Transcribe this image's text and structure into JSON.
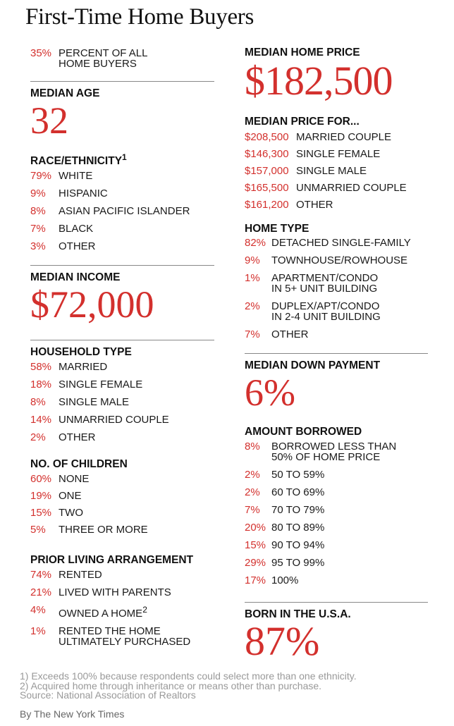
{
  "title": "First-Time Home Buyers",
  "percent_all": {
    "pct": "35%",
    "label_line1": "PERCENT OF ALL",
    "label_line2": "HOME BUYERS"
  },
  "median_age": {
    "header": "MEDIAN AGE",
    "value": "32"
  },
  "race": {
    "header": "RACE/ETHNICITY",
    "footnote_mark": "1",
    "items": [
      {
        "pct": "79%",
        "label": "WHITE"
      },
      {
        "pct": "9%",
        "label": "HISPANIC"
      },
      {
        "pct": "8%",
        "label": "ASIAN PACIFIC ISLANDER"
      },
      {
        "pct": "7%",
        "label": "BLACK"
      },
      {
        "pct": "3%",
        "label": "OTHER"
      }
    ]
  },
  "median_income": {
    "header": "MEDIAN INCOME",
    "value": "$72,000"
  },
  "household": {
    "header": "HOUSEHOLD TYPE",
    "items": [
      {
        "pct": "58%",
        "label": "MARRIED"
      },
      {
        "pct": "18%",
        "label": "SINGLE FEMALE"
      },
      {
        "pct": "8%",
        "label": "SINGLE MALE"
      },
      {
        "pct": "14%",
        "label": "UNMARRIED COUPLE"
      },
      {
        "pct": "2%",
        "label": "OTHER"
      }
    ]
  },
  "children": {
    "header": "NO. OF CHILDREN",
    "items": [
      {
        "pct": "60%",
        "label": "NONE"
      },
      {
        "pct": "19%",
        "label": "ONE"
      },
      {
        "pct": "15%",
        "label": "TWO"
      },
      {
        "pct": "5%",
        "label": "THREE OR MORE"
      }
    ]
  },
  "prior_living": {
    "header": "PRIOR LIVING ARRANGEMENT",
    "items": [
      {
        "pct": "74%",
        "label": "RENTED"
      },
      {
        "pct": "21%",
        "label": "LIVED WITH PARENTS"
      },
      {
        "pct": "4%",
        "label": "OWNED A HOME",
        "mark": "2"
      },
      {
        "pct": "1%",
        "label": "RENTED THE HOME",
        "label2": "ULTIMATELY PURCHASED"
      }
    ]
  },
  "median_home_price": {
    "header": "MEDIAN HOME PRICE",
    "value": "$182,500"
  },
  "median_price_for": {
    "header": "MEDIAN PRICE FOR...",
    "items": [
      {
        "price": "$208,500",
        "label": "MARRIED COUPLE"
      },
      {
        "price": "$146,300",
        "label": "SINGLE FEMALE"
      },
      {
        "price": "$157,000",
        "label": "SINGLE MALE"
      },
      {
        "price": "$165,500",
        "label": "UNMARRIED COUPLE"
      },
      {
        "price": "$161,200",
        "label": "OTHER"
      }
    ]
  },
  "home_type": {
    "header": "HOME TYPE",
    "items": [
      {
        "pct": "82%",
        "label": "DETACHED SINGLE-FAMILY"
      },
      {
        "pct": "9%",
        "label": "TOWNHOUSE/ROWHOUSE"
      },
      {
        "pct": "1%",
        "label": "APARTMENT/CONDO",
        "label2": "IN 5+ UNIT BUILDING"
      },
      {
        "pct": "2%",
        "label": "DUPLEX/APT/CONDO",
        "label2": "IN 2-4 UNIT BUILDING"
      },
      {
        "pct": "7%",
        "label": "OTHER"
      }
    ]
  },
  "down_payment": {
    "header": "MEDIAN DOWN PAYMENT",
    "value": "6%"
  },
  "borrowed": {
    "header": "AMOUNT BORROWED",
    "items": [
      {
        "pct": "8%",
        "label": "BORROWED LESS THAN",
        "label2": "50% OF HOME PRICE"
      },
      {
        "pct": "2%",
        "label": "50 TO 59%"
      },
      {
        "pct": "2%",
        "label": "60 TO 69%"
      },
      {
        "pct": "7%",
        "label": "70 TO 79%"
      },
      {
        "pct": "20%",
        "label": "80 TO 89%"
      },
      {
        "pct": "15%",
        "label": "90 TO 94%"
      },
      {
        "pct": "29%",
        "label": "95 TO 99%"
      },
      {
        "pct": "17%",
        "label": "100%"
      }
    ]
  },
  "born_usa": {
    "header": "BORN IN THE U.S.A.",
    "value": "87%"
  },
  "footnotes": [
    "1) Exceeds 100% because respondents could select more than one ethnicity.",
    "2) Acquired home through inheritance or means other than purchase.",
    "Source: National Association of Realtors"
  ],
  "byline": "By The New York Times",
  "colors": {
    "accent": "#d3302d",
    "text": "#1a1a1a",
    "rule": "#888888",
    "footnote": "#999999"
  }
}
